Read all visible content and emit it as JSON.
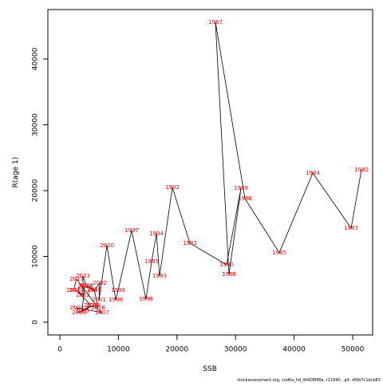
{
  "chart_data": {
    "type": "line",
    "xlabel": "SSB",
    "ylabel": "R(age 1)",
    "footnote": "stockassessment.org, cod6a_hd_WKDEM8a, r11940 , git: df0b7c1bcb83",
    "labels": [
      "1982",
      "1983",
      "1984",
      "1985",
      "1986",
      "1987",
      "1988",
      "1989",
      "1990",
      "1991",
      "1992",
      "1993",
      "1994",
      "1995",
      "1996",
      "1997",
      "1998",
      "1999",
      "2000",
      "2001",
      "2002",
      "2003",
      "2004",
      "2005",
      "2006",
      "2007",
      "2008",
      "2009",
      "2010",
      "2011",
      "2012",
      "2013",
      "2014",
      "2015",
      "2016",
      "2017",
      "2018"
    ],
    "x": [
      51500,
      49730,
      43190,
      37470,
      31610,
      26570,
      28880,
      30930,
      28470,
      22210,
      19210,
      17030,
      16490,
      15670,
      14710,
      12260,
      9950,
      9540,
      8040,
      6680,
      6810,
      5860,
      4220,
      3810,
      5720,
      7220,
      2860,
      3270,
      5310,
      2860,
      3950,
      3950,
      4500,
      5860,
      6540,
      2860,
      2320
    ],
    "values": [
      23150,
      14300,
      22670,
      10550,
      18790,
      45580,
      7270,
      20360,
      8730,
      12000,
      20480,
      7030,
      13450,
      9210,
      3520,
      13940,
      4850,
      3390,
      11640,
      3390,
      5940,
      4850,
      5450,
      1700,
      2550,
      1450,
      2180,
      1450,
      2550,
      4850,
      4120,
      7030,
      5580,
      4970,
      2180,
      6550,
      4850
    ],
    "color": "#000000",
    "label_color": "#ff0000",
    "xlim": [
      -2044,
      53406
    ],
    "ylim": [
      -1939,
      47515
    ],
    "xticks": [
      0,
      10000,
      20000,
      30000,
      40000,
      50000
    ],
    "yticks": [
      0,
      10000,
      20000,
      30000,
      40000
    ]
  }
}
